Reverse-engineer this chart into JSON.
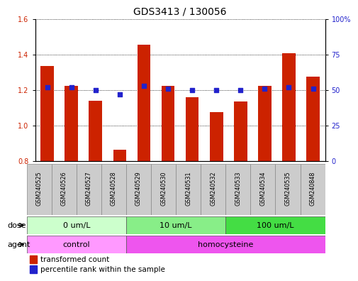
{
  "title": "GDS3413 / 130056",
  "samples": [
    "GSM240525",
    "GSM240526",
    "GSM240527",
    "GSM240528",
    "GSM240529",
    "GSM240530",
    "GSM240531",
    "GSM240532",
    "GSM240533",
    "GSM240534",
    "GSM240535",
    "GSM240848"
  ],
  "transformed_count": [
    1.335,
    1.225,
    1.14,
    0.865,
    1.455,
    1.225,
    1.16,
    1.075,
    1.135,
    1.225,
    1.41,
    1.275
  ],
  "percentile_rank": [
    52,
    52,
    50,
    47,
    53,
    51,
    50,
    50,
    50,
    51,
    52,
    51
  ],
  "ylim_left": [
    0.8,
    1.6
  ],
  "ylim_right": [
    0,
    100
  ],
  "yticks_left": [
    0.8,
    1.0,
    1.2,
    1.4,
    1.6
  ],
  "yticks_right": [
    0,
    25,
    50,
    75,
    100
  ],
  "ytick_labels_right": [
    "0",
    "25",
    "50",
    "75",
    "100%"
  ],
  "bar_color": "#cc2200",
  "dot_color": "#2222cc",
  "bar_width": 0.55,
  "dose_groups": [
    {
      "label": "0 um/L",
      "start": 0,
      "end": 4,
      "color": "#ccffcc"
    },
    {
      "label": "10 um/L",
      "start": 4,
      "end": 8,
      "color": "#88ee88"
    },
    {
      "label": "100 um/L",
      "start": 8,
      "end": 12,
      "color": "#44dd44"
    }
  ],
  "agent_groups": [
    {
      "label": "control",
      "start": 0,
      "end": 4,
      "color": "#ff99ff"
    },
    {
      "label": "homocysteine",
      "start": 4,
      "end": 12,
      "color": "#ee55ee"
    }
  ],
  "dose_label": "dose",
  "agent_label": "agent",
  "legend_bar_label": "transformed count",
  "legend_dot_label": "percentile rank within the sample",
  "grid_color": "#000000",
  "axis_color_left": "#cc2200",
  "axis_color_right": "#2222cc",
  "bg_plot": "#ffffff",
  "bg_sample": "#cccccc",
  "tick_fs": 7,
  "title_fs": 10,
  "legend_fs": 7.5,
  "row_label_fs": 8,
  "sample_fs": 5.8
}
